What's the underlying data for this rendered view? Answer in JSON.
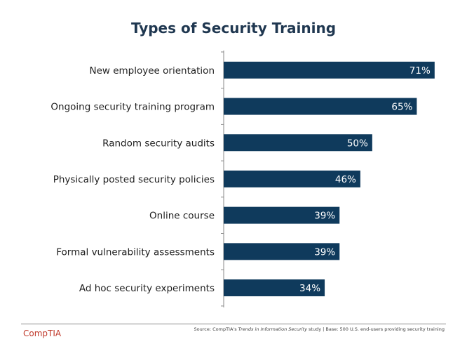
{
  "chart_data": {
    "type": "bar",
    "orientation": "horizontal",
    "title": "Types of Security Training",
    "categories": [
      "New employee orientation",
      "Ongoing security training program",
      "Random security audits",
      "Physically posted security policies",
      "Online course",
      "Formal vulnerability assessments",
      "Ad hoc security experiments"
    ],
    "values": [
      71,
      65,
      50,
      46,
      39,
      39,
      34
    ],
    "value_labels": [
      "71%",
      "65%",
      "50%",
      "46%",
      "39%",
      "39%",
      "34%"
    ],
    "xlim": [
      0,
      76
    ],
    "grid": false,
    "legend": "none",
    "bar_color": "#0f3a5c",
    "label_color": "#ffffff"
  },
  "footer": {
    "logo": "CompTIA",
    "source_prefix": "Source: CompTIA's ",
    "source_title": "Trends in Information Security",
    "source_suffix": " study | Base: 500 U.S. end-users providing security training"
  },
  "colors": {
    "title": "#1f3750",
    "logo": "#c0392b"
  }
}
